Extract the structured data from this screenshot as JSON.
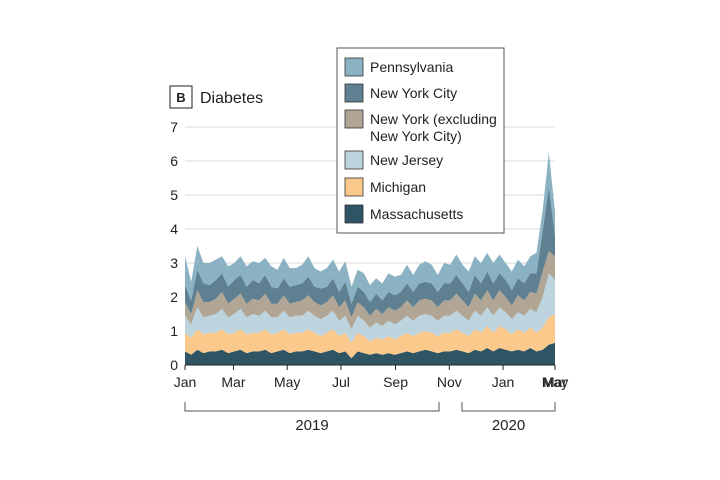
{
  "chart_data": {
    "type": "area",
    "stacked": true,
    "panel_label": "B",
    "title": "Diabetes",
    "xlabel": "",
    "ylabel": "",
    "ylim": [
      0,
      7
    ],
    "yticks": [
      "0",
      "1",
      "2",
      "3",
      "4",
      "5",
      "6",
      "7"
    ],
    "grid": "horizontal",
    "x_tick_labels": [
      "Jan",
      "Mar",
      "May",
      "Jul",
      "Sep",
      "Nov",
      "Jan",
      "Mar",
      "May"
    ],
    "x_start": "2019-01-05",
    "x_step_days": 7,
    "year_labels": [
      "2019",
      "2020"
    ],
    "legend_position": "top-right",
    "series": [
      {
        "name": "Massachusetts",
        "color": "#2f5463",
        "values": [
          0.4,
          0.3,
          0.45,
          0.35,
          0.4,
          0.4,
          0.45,
          0.35,
          0.4,
          0.45,
          0.35,
          0.4,
          0.4,
          0.45,
          0.35,
          0.4,
          0.45,
          0.35,
          0.4,
          0.4,
          0.45,
          0.4,
          0.35,
          0.4,
          0.45,
          0.35,
          0.4,
          0.2,
          0.4,
          0.35,
          0.3,
          0.35,
          0.3,
          0.35,
          0.3,
          0.35,
          0.4,
          0.35,
          0.4,
          0.45,
          0.4,
          0.35,
          0.4,
          0.4,
          0.45,
          0.4,
          0.35,
          0.45,
          0.4,
          0.5,
          0.4,
          0.5,
          0.45,
          0.4,
          0.45,
          0.4,
          0.5,
          0.4,
          0.45,
          0.6,
          0.65
        ]
      },
      {
        "name": "Michigan",
        "color": "#fcc98d",
        "values": [
          0.55,
          0.5,
          0.6,
          0.55,
          0.55,
          0.55,
          0.6,
          0.55,
          0.55,
          0.6,
          0.55,
          0.55,
          0.55,
          0.6,
          0.55,
          0.55,
          0.6,
          0.55,
          0.55,
          0.55,
          0.6,
          0.55,
          0.5,
          0.55,
          0.6,
          0.5,
          0.55,
          0.45,
          0.55,
          0.5,
          0.4,
          0.45,
          0.45,
          0.5,
          0.45,
          0.5,
          0.55,
          0.5,
          0.55,
          0.55,
          0.55,
          0.5,
          0.55,
          0.55,
          0.6,
          0.55,
          0.5,
          0.6,
          0.55,
          0.65,
          0.55,
          0.65,
          0.6,
          0.5,
          0.6,
          0.55,
          0.6,
          0.55,
          0.65,
          0.8,
          0.85
        ]
      },
      {
        "name": "New Jersey",
        "color": "#bdd3dd",
        "values": [
          0.5,
          0.4,
          0.65,
          0.5,
          0.5,
          0.55,
          0.6,
          0.5,
          0.55,
          0.6,
          0.5,
          0.55,
          0.5,
          0.55,
          0.5,
          0.45,
          0.55,
          0.5,
          0.5,
          0.5,
          0.55,
          0.5,
          0.5,
          0.5,
          0.55,
          0.45,
          0.5,
          0.4,
          0.5,
          0.45,
          0.4,
          0.45,
          0.4,
          0.45,
          0.45,
          0.45,
          0.5,
          0.45,
          0.5,
          0.5,
          0.5,
          0.45,
          0.5,
          0.5,
          0.55,
          0.5,
          0.45,
          0.55,
          0.5,
          0.55,
          0.5,
          0.55,
          0.5,
          0.45,
          0.5,
          0.5,
          0.55,
          0.6,
          0.9,
          1.3,
          1.0
        ]
      },
      {
        "name": "New York (excluding New York City)",
        "color": "#b1a695",
        "values": [
          0.4,
          0.3,
          0.5,
          0.45,
          0.4,
          0.45,
          0.5,
          0.4,
          0.45,
          0.45,
          0.4,
          0.45,
          0.45,
          0.5,
          0.4,
          0.4,
          0.45,
          0.4,
          0.4,
          0.45,
          0.45,
          0.4,
          0.4,
          0.4,
          0.45,
          0.4,
          0.45,
          0.35,
          0.4,
          0.4,
          0.35,
          0.4,
          0.35,
          0.4,
          0.4,
          0.4,
          0.45,
          0.4,
          0.45,
          0.45,
          0.45,
          0.4,
          0.45,
          0.45,
          0.5,
          0.45,
          0.4,
          0.5,
          0.45,
          0.5,
          0.45,
          0.5,
          0.45,
          0.4,
          0.5,
          0.45,
          0.5,
          0.55,
          0.75,
          0.65,
          0.7
        ]
      },
      {
        "name": "New York City",
        "color": "#5e8090",
        "values": [
          0.5,
          0.4,
          0.6,
          0.55,
          0.5,
          0.55,
          0.55,
          0.5,
          0.55,
          0.55,
          0.5,
          0.55,
          0.5,
          0.55,
          0.5,
          0.45,
          0.5,
          0.5,
          0.5,
          0.5,
          0.55,
          0.45,
          0.5,
          0.45,
          0.5,
          0.45,
          0.55,
          0.4,
          0.45,
          0.45,
          0.4,
          0.45,
          0.4,
          0.45,
          0.45,
          0.45,
          0.5,
          0.45,
          0.5,
          0.5,
          0.5,
          0.45,
          0.5,
          0.5,
          0.55,
          0.5,
          0.45,
          0.55,
          0.5,
          0.55,
          0.5,
          0.5,
          0.5,
          0.45,
          0.5,
          0.5,
          0.55,
          0.6,
          1.2,
          1.9,
          0.6
        ]
      },
      {
        "name": "Pennsylvania",
        "color": "#8bb2c3",
        "values": [
          0.85,
          0.55,
          0.7,
          0.6,
          0.65,
          0.6,
          0.5,
          0.6,
          0.5,
          0.55,
          0.6,
          0.55,
          0.6,
          0.5,
          0.6,
          0.55,
          0.6,
          0.55,
          0.5,
          0.55,
          0.6,
          0.55,
          0.5,
          0.55,
          0.55,
          0.6,
          0.6,
          0.5,
          0.5,
          0.55,
          0.5,
          0.45,
          0.5,
          0.55,
          0.55,
          0.5,
          0.55,
          0.5,
          0.55,
          0.6,
          0.55,
          0.5,
          0.6,
          0.55,
          0.6,
          0.55,
          0.6,
          0.55,
          0.6,
          0.55,
          0.6,
          0.55,
          0.5,
          0.55,
          0.55,
          0.5,
          0.5,
          0.6,
          0.6,
          1.0,
          0.7
        ]
      }
    ]
  }
}
